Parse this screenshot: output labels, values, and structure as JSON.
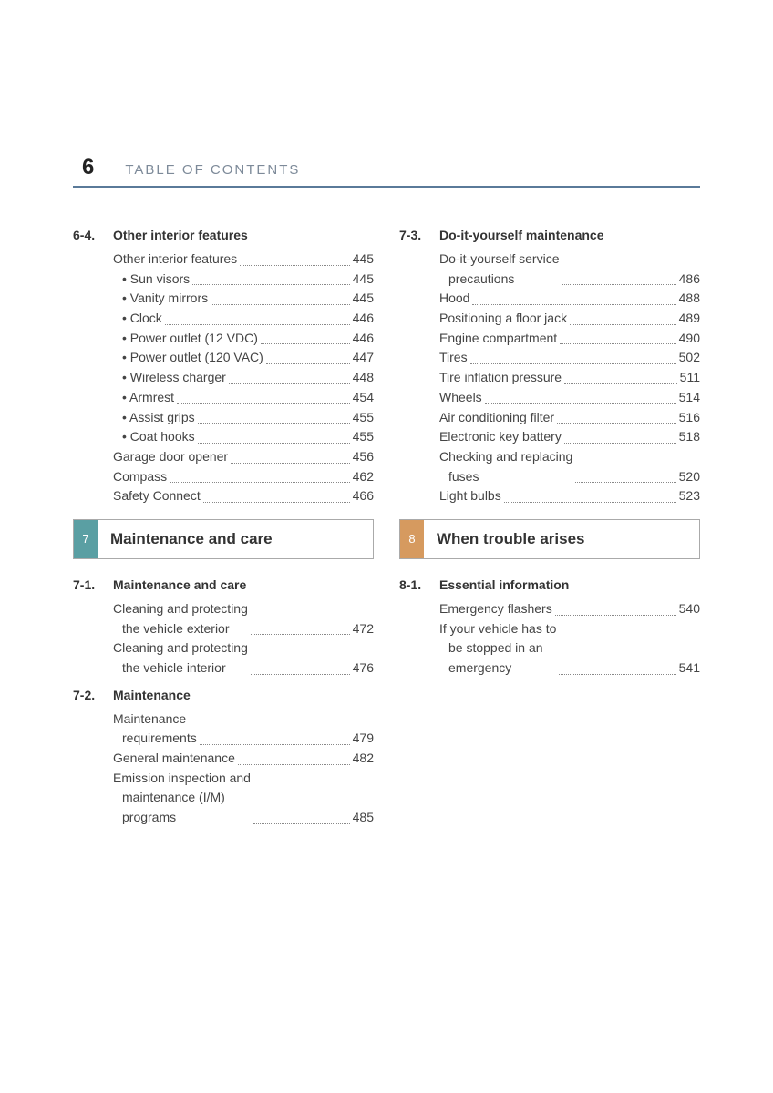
{
  "header": {
    "page_number": "6",
    "title": "TABLE OF CONTENTS",
    "rule_color": "#5a7a99"
  },
  "left": {
    "section_6_4": {
      "num": "6-4.",
      "title": "Other interior features",
      "entries": [
        {
          "label": "Other interior features",
          "page": "445"
        }
      ],
      "bullets": [
        {
          "label": "Sun visors",
          "page": "445"
        },
        {
          "label": "Vanity mirrors",
          "page": "445"
        },
        {
          "label": "Clock",
          "page": "446"
        },
        {
          "label": "Power outlet (12 VDC)",
          "page": "446"
        },
        {
          "label": "Power outlet (120 VAC)",
          "page": "447"
        },
        {
          "label": "Wireless charger",
          "page": "448"
        },
        {
          "label": "Armrest",
          "page": "454"
        },
        {
          "label": "Assist grips",
          "page": "455"
        },
        {
          "label": "Coat hooks",
          "page": "455"
        }
      ],
      "tail": [
        {
          "label": "Garage door opener",
          "page": "456"
        },
        {
          "label": "Compass",
          "page": "462"
        },
        {
          "label": "Safety Connect",
          "page": "466"
        }
      ]
    },
    "chapter_7": {
      "num": "7",
      "title": "Maintenance and care",
      "num_bg": "#5a9fa3"
    },
    "section_7_1": {
      "num": "7-1.",
      "title": "Maintenance and care",
      "entries": [
        {
          "label_lines": [
            "Cleaning and protecting",
            "the vehicle exterior"
          ],
          "page": "472"
        },
        {
          "label_lines": [
            "Cleaning and protecting",
            "the vehicle interior"
          ],
          "page": "476"
        }
      ]
    },
    "section_7_2": {
      "num": "7-2.",
      "title": "Maintenance",
      "entries": [
        {
          "label_lines": [
            "Maintenance",
            "requirements"
          ],
          "page": "479"
        },
        {
          "label": "General maintenance",
          "page": "482"
        },
        {
          "label_lines": [
            "Emission inspection and",
            "maintenance (I/M)",
            "programs"
          ],
          "page": "485"
        }
      ]
    }
  },
  "right": {
    "section_7_3": {
      "num": "7-3.",
      "title": "Do-it-yourself maintenance",
      "entries": [
        {
          "label_lines": [
            "Do-it-yourself service",
            "precautions"
          ],
          "page": "486"
        },
        {
          "label": "Hood",
          "page": "488"
        },
        {
          "label": "Positioning a floor jack",
          "page": "489"
        },
        {
          "label": "Engine compartment",
          "page": "490"
        },
        {
          "label": "Tires",
          "page": "502"
        },
        {
          "label": "Tire inflation pressure",
          "page": "511"
        },
        {
          "label": "Wheels",
          "page": "514"
        },
        {
          "label": "Air conditioning filter",
          "page": "516"
        },
        {
          "label": "Electronic key battery",
          "page": "518"
        },
        {
          "label_lines": [
            "Checking and replacing",
            "fuses"
          ],
          "page": "520"
        },
        {
          "label": "Light bulbs",
          "page": "523"
        }
      ]
    },
    "chapter_8": {
      "num": "8",
      "title": "When trouble arises",
      "num_bg": "#d69a5f"
    },
    "section_8_1": {
      "num": "8-1.",
      "title": "Essential information",
      "entries": [
        {
          "label": "Emergency flashers",
          "page": "540"
        },
        {
          "label_lines": [
            "If your vehicle has to",
            "be stopped in an",
            "emergency"
          ],
          "page": "541"
        }
      ]
    }
  }
}
